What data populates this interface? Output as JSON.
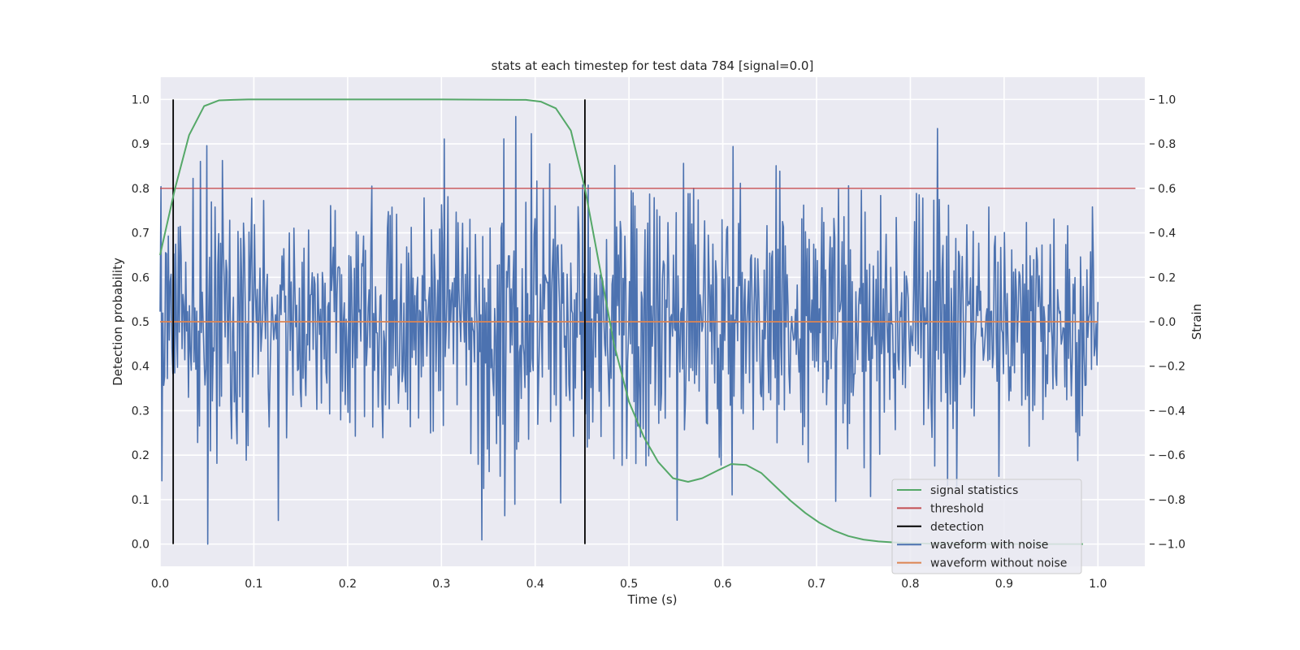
{
  "chart_data": {
    "type": "line",
    "title": "stats at each timestep for test data 784 [signal=0.0]",
    "xlabel": "Time (s)",
    "ylabel_left": "Detection probability",
    "ylabel_right": "Strain",
    "xlim": [
      0.0,
      1.05
    ],
    "ylim_left": [
      -0.05,
      1.05
    ],
    "ylim_right": [
      -1.1,
      1.1
    ],
    "x_ticks": [
      "0.0",
      "0.1",
      "0.2",
      "0.3",
      "0.4",
      "0.5",
      "0.6",
      "0.7",
      "0.8",
      "0.9",
      "1.0"
    ],
    "y_ticks_left": [
      "0.0",
      "0.1",
      "0.2",
      "0.3",
      "0.4",
      "0.5",
      "0.6",
      "0.7",
      "0.8",
      "0.9",
      "1.0"
    ],
    "y_ticks_right": [
      "−1.0",
      "−0.8",
      "−0.6",
      "−0.4",
      "−0.2",
      "0.0",
      "0.2",
      "0.4",
      "0.6",
      "0.8",
      "1.0"
    ],
    "grid": true,
    "legend_position": "bottom-right",
    "colors": {
      "signal_statistics": "#55a868",
      "threshold": "#c44e52",
      "detection": "#000000",
      "waveform_with_noise": "#4c72b0",
      "waveform_without_noise": "#dd8452",
      "plot_background": "#eaeaf2",
      "grid": "#ffffff"
    },
    "legend": [
      "signal statistics",
      "threshold",
      "detection",
      "waveform with noise",
      "waveform without noise"
    ],
    "signal_statistics": {
      "axis": "left",
      "x": [
        0.0,
        0.016,
        0.031,
        0.047,
        0.063,
        0.078,
        0.094,
        0.2,
        0.3,
        0.39,
        0.406,
        0.422,
        0.438,
        0.453,
        0.469,
        0.484,
        0.5,
        0.516,
        0.531,
        0.547,
        0.563,
        0.578,
        0.594,
        0.609,
        0.625,
        0.641,
        0.656,
        0.672,
        0.688,
        0.703,
        0.719,
        0.734,
        0.75,
        0.766,
        0.781,
        0.8,
        0.82,
        0.84,
        0.86,
        0.9,
        0.95,
        0.984
      ],
      "y": [
        0.65,
        0.8,
        0.92,
        0.985,
        0.998,
        0.999,
        1.0,
        1.0,
        1.0,
        0.999,
        0.995,
        0.98,
        0.93,
        0.8,
        0.62,
        0.45,
        0.32,
        0.24,
        0.185,
        0.148,
        0.14,
        0.148,
        0.165,
        0.18,
        0.178,
        0.16,
        0.13,
        0.098,
        0.07,
        0.048,
        0.03,
        0.018,
        0.01,
        0.006,
        0.004,
        0.002,
        0.001,
        0.001,
        0.0,
        0.0,
        0.0,
        0.0
      ]
    },
    "threshold": {
      "axis": "left",
      "value": 0.8,
      "x_range": [
        0.0,
        1.04
      ]
    },
    "detection": {
      "axis": "left",
      "x": [
        0.014,
        0.453
      ],
      "y_range": [
        0.0,
        1.0
      ]
    },
    "waveform_without_noise": {
      "axis": "right",
      "value": 0.0,
      "x_range": [
        0.0,
        1.0
      ]
    },
    "waveform_with_noise": {
      "axis": "right",
      "x_range": [
        0.0,
        1.0
      ],
      "samples": 1024,
      "y_min": -1.0,
      "y_max": 1.0,
      "note": "noise"
    }
  }
}
